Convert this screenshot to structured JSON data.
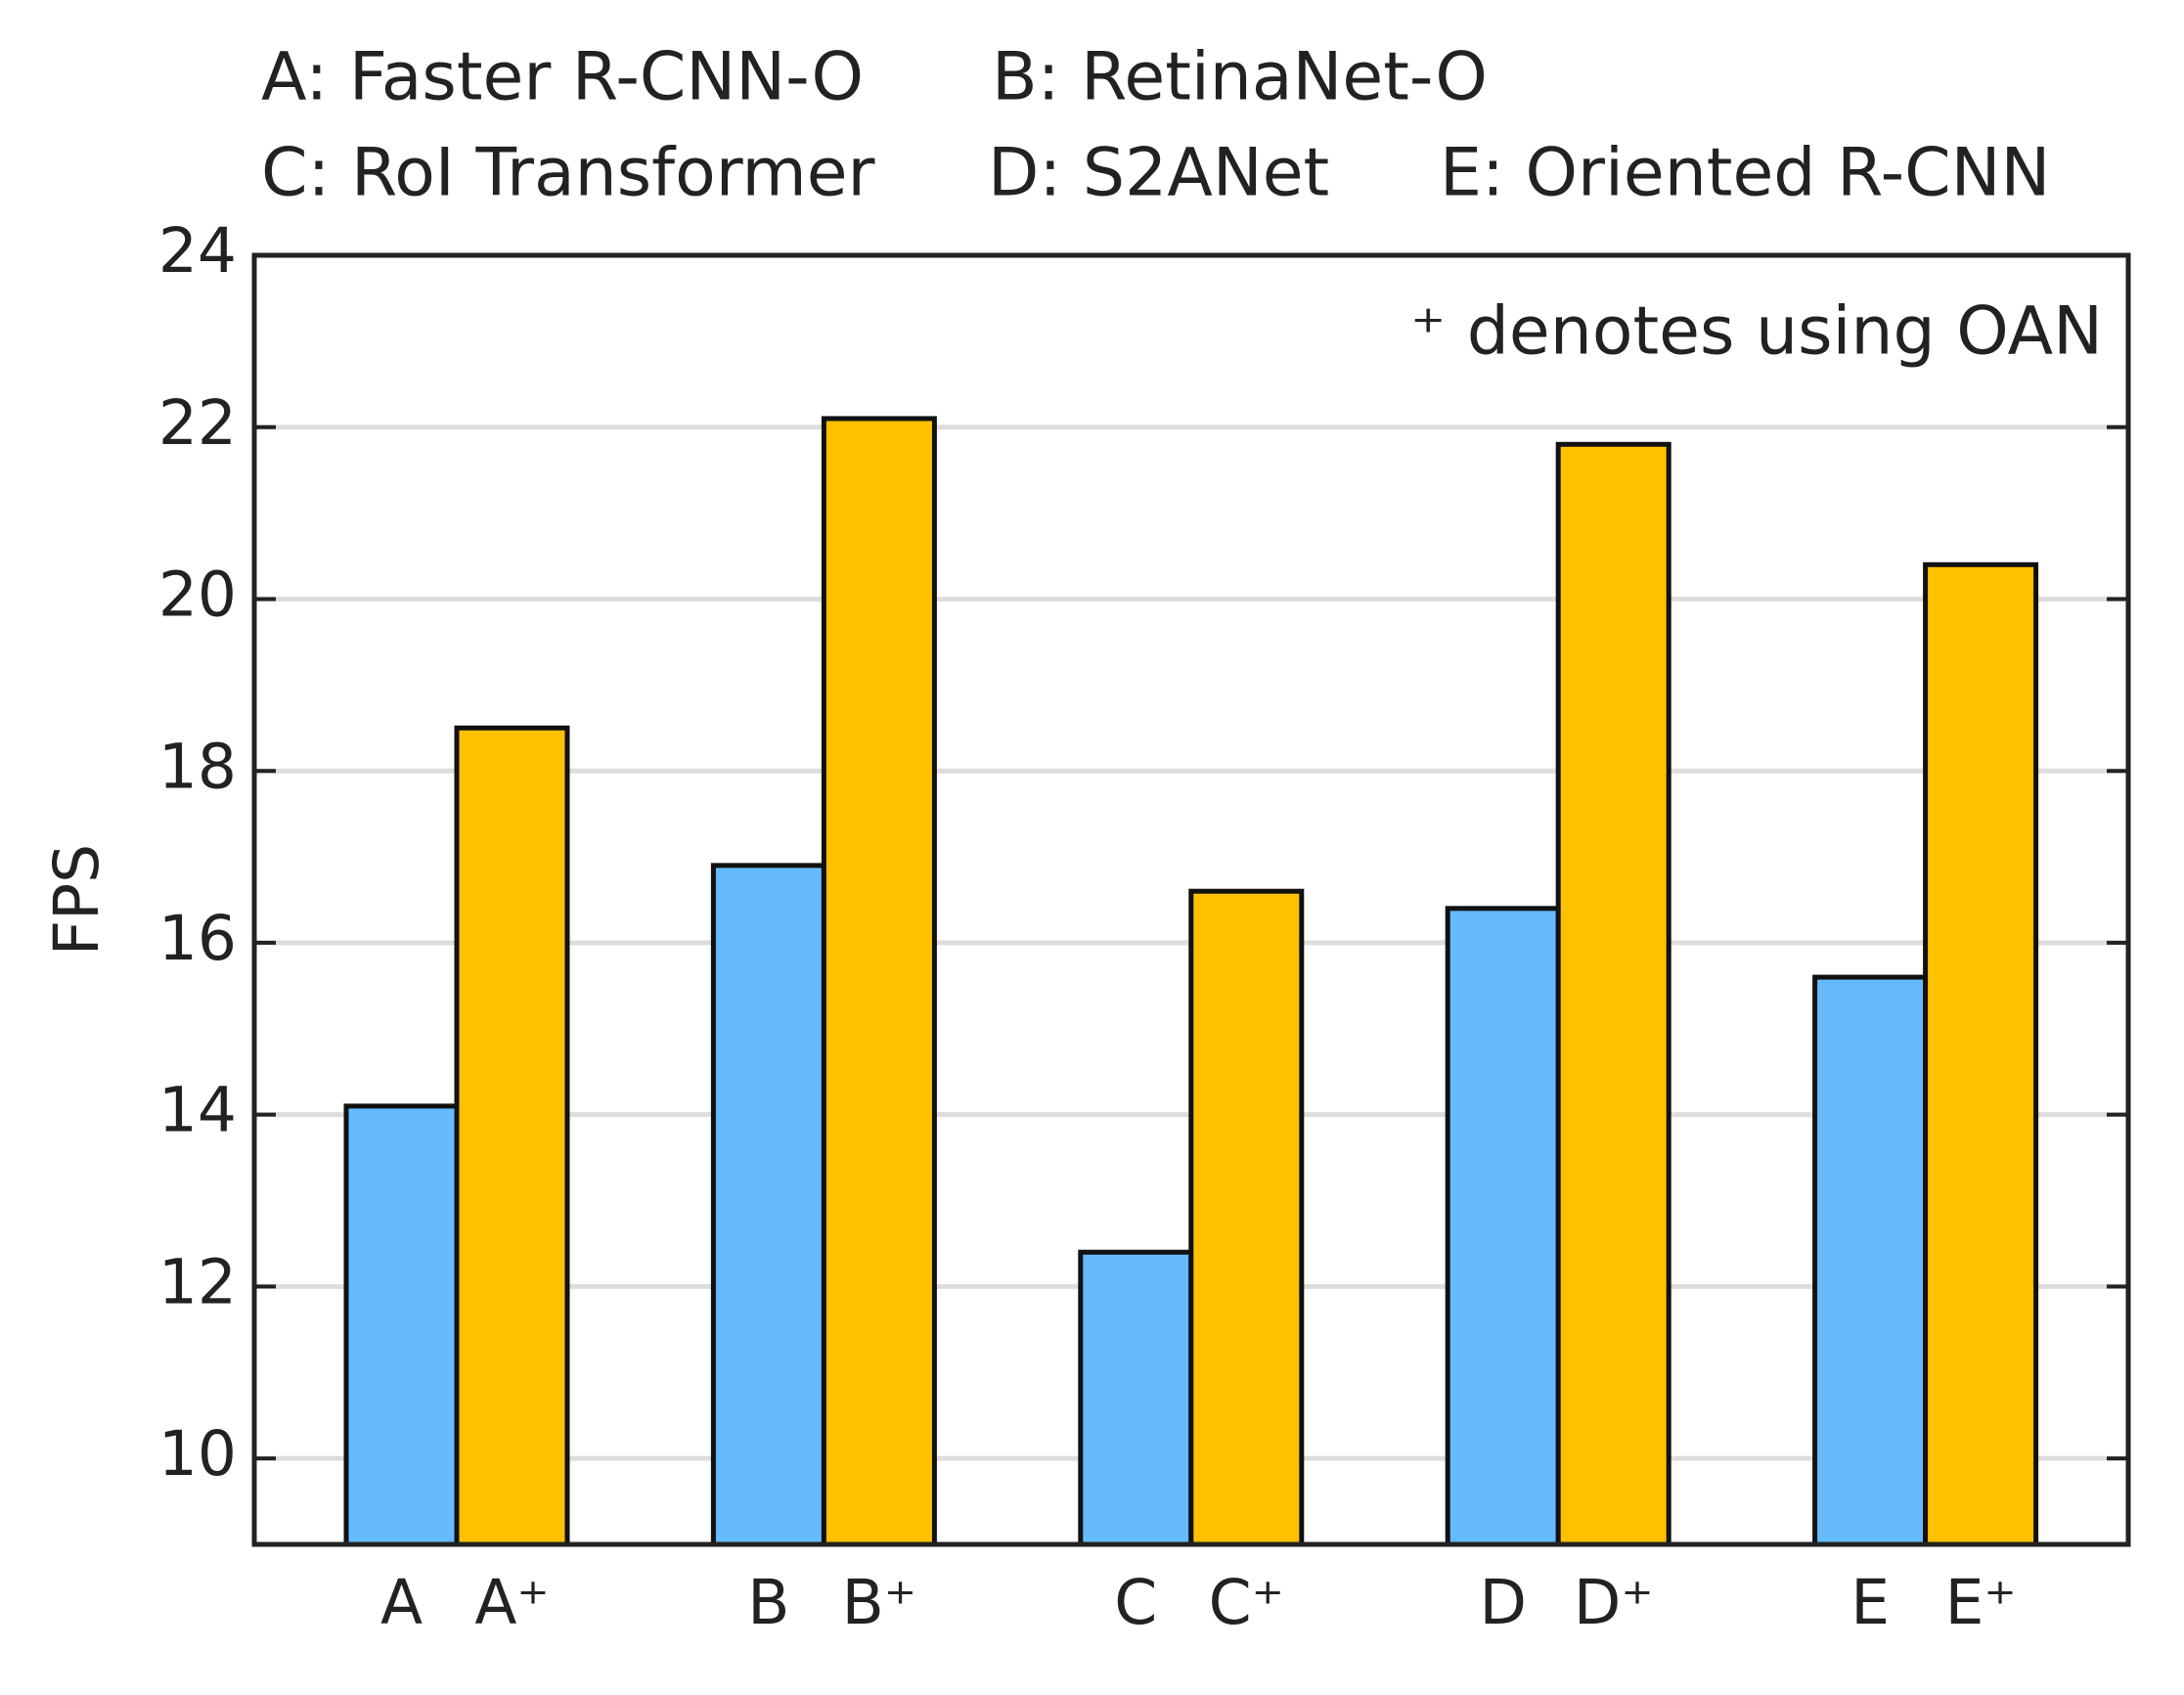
{
  "chart_data": {
    "type": "bar",
    "key": [
      "A: Faster R-CNN-O",
      "B: RetinaNet-O",
      "C: RoI Transformer",
      "D: S2ANet",
      "E: Oriented R-CNN"
    ],
    "annotation": "⁺ denotes using OAN",
    "ylabel": "FPS",
    "series": [
      {
        "color": "#66bbff",
        "labels": [
          "A",
          "B",
          "C",
          "D",
          "E"
        ],
        "values": [
          14.1,
          16.9,
          12.4,
          16.4,
          15.6
        ]
      },
      {
        "color": "#ffc000",
        "labels": [
          "A⁺",
          "B⁺",
          "C⁺",
          "D⁺",
          "E⁺"
        ],
        "values": [
          18.5,
          22.1,
          16.6,
          21.8,
          20.4
        ]
      }
    ],
    "ylim": [
      9,
      24
    ],
    "yticks": [
      10,
      12,
      14,
      16,
      18,
      20,
      22,
      24
    ],
    "grid": true
  }
}
